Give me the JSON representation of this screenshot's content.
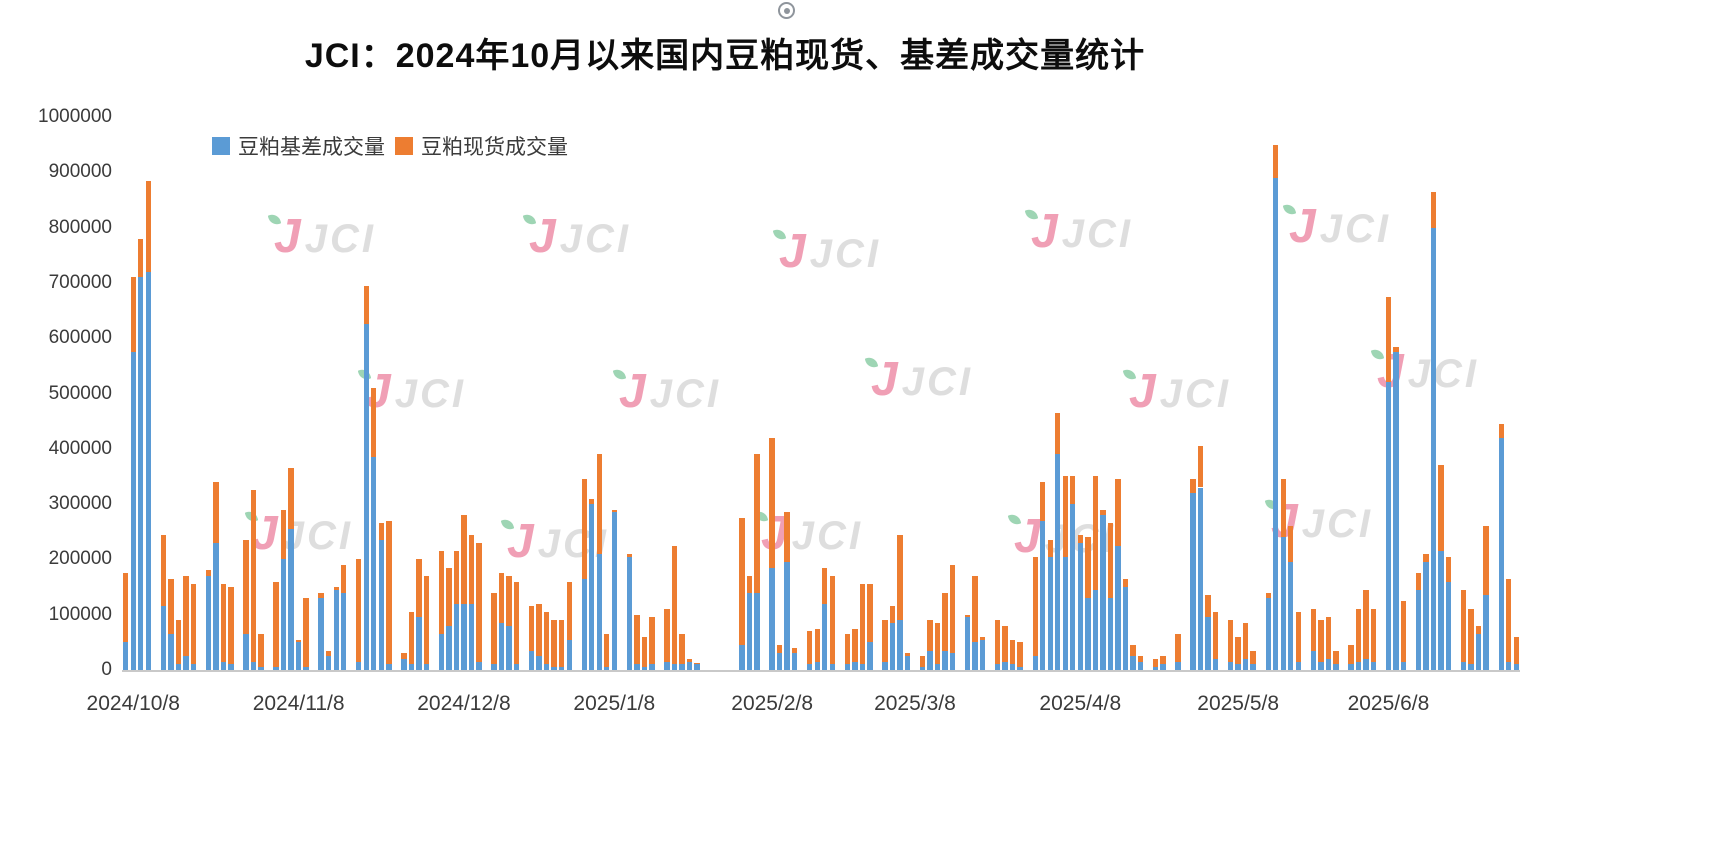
{
  "title": "JCI：2024年10月以来国内豆粕现货、基差成交量统计",
  "icons": {
    "top_center": "circled-dot-icon"
  },
  "watermark": {
    "text": "JCI"
  },
  "legend": {
    "items": [
      {
        "label": "豆粕基差成交量",
        "color": "#5B9BD5"
      },
      {
        "label": "豆粕现货成交量",
        "color": "#ED7D31"
      }
    ]
  },
  "chart_data": {
    "type": "bar",
    "stacked": true,
    "title": "JCI：2024年10月以来国内豆粕现货、基差成交量统计",
    "xlabel": "",
    "ylabel": "",
    "grid": false,
    "legend_position": "top-left",
    "ylim": [
      0,
      1000000
    ],
    "y_ticks": [
      0,
      100000,
      200000,
      300000,
      400000,
      500000,
      600000,
      700000,
      800000,
      900000,
      1000000
    ],
    "x_tick_labels": [
      "2024/10/8",
      "2024/11/8",
      "2024/12/8",
      "2025/1/8",
      "2025/2/8",
      "2025/3/8",
      "2025/4/8",
      "2025/5/8",
      "2025/6/8"
    ],
    "x_tick_slots": [
      1,
      23,
      45,
      65,
      86,
      105,
      127,
      148,
      168
    ],
    "series": [
      {
        "name": "豆粕基差成交量",
        "color": "#5B9BD5",
        "values": [
          50000,
          575000,
          710000,
          720000,
          0,
          115000,
          65000,
          10000,
          25000,
          10000,
          0,
          170000,
          230000,
          15000,
          10000,
          0,
          65000,
          15000,
          5000,
          0,
          5000,
          200000,
          255000,
          50000,
          5000,
          0,
          130000,
          25000,
          145000,
          140000,
          0,
          15000,
          625000,
          385000,
          235000,
          10000,
          0,
          20000,
          10000,
          95000,
          10000,
          0,
          65000,
          80000,
          120000,
          120000,
          120000,
          15000,
          0,
          10000,
          85000,
          80000,
          10000,
          0,
          35000,
          25000,
          10000,
          5000,
          5000,
          55000,
          0,
          165000,
          300000,
          210000,
          5000,
          285000,
          0,
          205000,
          10000,
          5000,
          10000,
          0,
          15000,
          10000,
          10000,
          15000,
          10000,
          0,
          0,
          0,
          0,
          0,
          45000,
          140000,
          140000,
          0,
          185000,
          30000,
          195000,
          30000,
          0,
          10000,
          15000,
          120000,
          10000,
          0,
          10000,
          15000,
          10000,
          50000,
          0,
          15000,
          85000,
          90000,
          25000,
          0,
          5000,
          35000,
          10000,
          35000,
          30000,
          0,
          95000,
          50000,
          55000,
          0,
          10000,
          15000,
          10000,
          5000,
          0,
          25000,
          270000,
          205000,
          390000,
          205000,
          300000,
          230000,
          130000,
          145000,
          280000,
          130000,
          225000,
          150000,
          25000,
          15000,
          0,
          5000,
          10000,
          0,
          15000,
          0,
          320000,
          330000,
          95000,
          20000,
          0,
          15000,
          10000,
          20000,
          10000,
          0,
          130000,
          890000,
          240000,
          195000,
          15000,
          0,
          35000,
          15000,
          20000,
          10000,
          0,
          10000,
          15000,
          20000,
          15000,
          0,
          520000,
          575000,
          15000,
          0,
          145000,
          195000,
          800000,
          215000,
          160000,
          0,
          15000,
          10000,
          65000,
          135000,
          0,
          420000,
          15000,
          10000
        ]
      },
      {
        "name": "豆粕现货成交量",
        "color": "#ED7D31",
        "values": [
          125000,
          135000,
          70000,
          165000,
          0,
          130000,
          100000,
          80000,
          145000,
          145000,
          0,
          10000,
          110000,
          140000,
          140000,
          0,
          170000,
          310000,
          60000,
          0,
          155000,
          90000,
          110000,
          5000,
          125000,
          0,
          10000,
          10000,
          5000,
          50000,
          0,
          185000,
          70000,
          125000,
          30000,
          260000,
          0,
          10000,
          95000,
          105000,
          160000,
          0,
          150000,
          105000,
          95000,
          160000,
          125000,
          215000,
          0,
          130000,
          90000,
          90000,
          150000,
          0,
          80000,
          95000,
          95000,
          85000,
          85000,
          105000,
          0,
          180000,
          10000,
          180000,
          60000,
          5000,
          0,
          5000,
          90000,
          55000,
          85000,
          0,
          95000,
          215000,
          55000,
          5000,
          2000,
          0,
          0,
          0,
          0,
          0,
          230000,
          30000,
          250000,
          0,
          235000,
          15000,
          90000,
          10000,
          0,
          60000,
          60000,
          65000,
          160000,
          0,
          55000,
          60000,
          145000,
          105000,
          0,
          75000,
          30000,
          155000,
          5000,
          0,
          20000,
          55000,
          75000,
          105000,
          160000,
          0,
          5000,
          120000,
          5000,
          0,
          80000,
          65000,
          45000,
          45000,
          0,
          180000,
          70000,
          30000,
          75000,
          145000,
          50000,
          15000,
          110000,
          205000,
          10000,
          135000,
          120000,
          15000,
          20000,
          10000,
          0,
          15000,
          15000,
          0,
          50000,
          0,
          25000,
          75000,
          40000,
          85000,
          0,
          75000,
          50000,
          65000,
          25000,
          0,
          10000,
          60000,
          105000,
          65000,
          90000,
          0,
          75000,
          75000,
          75000,
          25000,
          0,
          35000,
          95000,
          125000,
          95000,
          0,
          155000,
          10000,
          110000,
          0,
          30000,
          15000,
          65000,
          155000,
          45000,
          0,
          130000,
          100000,
          15000,
          125000,
          0,
          25000,
          150000,
          50000
        ]
      }
    ]
  }
}
